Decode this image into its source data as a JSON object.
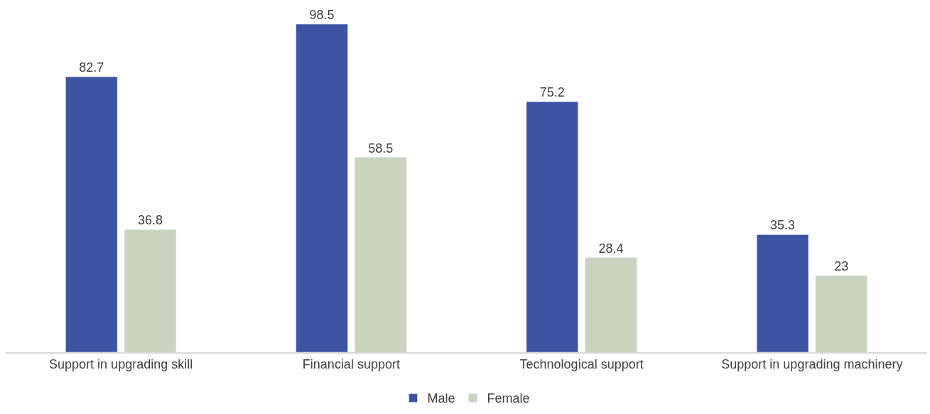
{
  "chart_data": {
    "type": "bar",
    "categories": [
      "Support in upgrading skill",
      "Financial support",
      "Technological support",
      "Support in upgrading machinery"
    ],
    "series": [
      {
        "name": "Male",
        "color": "#3d54a3",
        "values": [
          82.7,
          98.5,
          75.2,
          35.3
        ]
      },
      {
        "name": "Female",
        "color": "#cad3bf",
        "values": [
          36.8,
          58.5,
          28.4,
          23
        ]
      }
    ],
    "data_labels": true,
    "legend": "bottom"
  }
}
